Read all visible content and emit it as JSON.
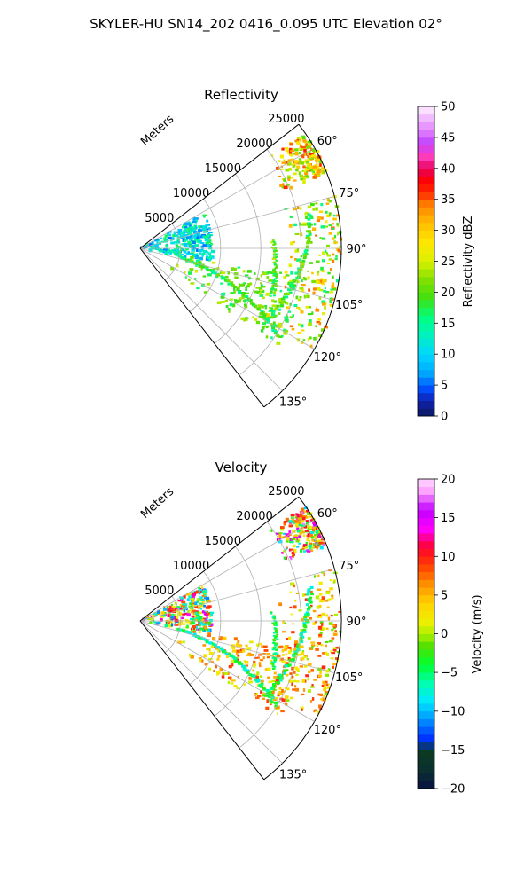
{
  "figure": {
    "suptitle": "SKYLER-HU  SN14_202  0416_0.095 UTC Elevation 02°"
  },
  "chart_data": [
    {
      "type": "heatmap",
      "projection": "polar-sector",
      "title": "Reflectivity",
      "radial_label": "Meters",
      "r_ticks": [
        "5000",
        "10000",
        "15000",
        "20000",
        "25000"
      ],
      "r_max": 25000,
      "theta_ticks": [
        "60°",
        "75°",
        "90°",
        "105°",
        "120°",
        "135°"
      ],
      "theta_range_deg": [
        52,
        142
      ],
      "grid": true,
      "colorbar": {
        "label": "Reflectivity dBZ",
        "min": 0,
        "max": 50,
        "ticks": [
          "0",
          "5",
          "10",
          "15",
          "20",
          "25",
          "30",
          "35",
          "40",
          "45",
          "50"
        ],
        "colormap": "pyart_NWSRef-like"
      },
      "features": [
        {
          "desc": "near-range clutter",
          "theta": [
            60,
            100
          ],
          "r": [
            0,
            9000
          ],
          "value": [
            5,
            18
          ]
        },
        {
          "desc": "north cell",
          "theta": [
            55,
            68
          ],
          "r": [
            19000,
            25000
          ],
          "value": [
            20,
            37
          ]
        },
        {
          "desc": "line east",
          "theta": [
            75,
            120
          ],
          "r": [
            17000,
            25000
          ],
          "value": [
            15,
            35
          ]
        },
        {
          "desc": "band southeast",
          "theta": [
            100,
            125
          ],
          "r": [
            4000,
            21000
          ],
          "value": [
            15,
            25
          ]
        }
      ]
    },
    {
      "type": "heatmap",
      "projection": "polar-sector",
      "title": "Velocity",
      "radial_label": "Meters",
      "r_ticks": [
        "5000",
        "10000",
        "15000",
        "20000",
        "25000"
      ],
      "r_max": 25000,
      "theta_ticks": [
        "60°",
        "75°",
        "90°",
        "105°",
        "120°",
        "135°"
      ],
      "theta_range_deg": [
        52,
        142
      ],
      "grid": true,
      "colorbar": {
        "label": "Velocity (m/s)",
        "min": -20,
        "max": 20,
        "ticks": [
          "−20",
          "−15",
          "−10",
          "−5",
          "0",
          "5",
          "10",
          "15",
          "20"
        ],
        "colormap": "pyart_BuDRd-like"
      },
      "features": [
        {
          "desc": "near-range",
          "theta": [
            60,
            100
          ],
          "r": [
            0,
            9000
          ],
          "value": [
            -12,
            15
          ]
        },
        {
          "desc": "north cell",
          "theta": [
            55,
            68
          ],
          "r": [
            19000,
            25000
          ],
          "value": [
            -10,
            18
          ]
        },
        {
          "desc": "line east",
          "theta": [
            75,
            120
          ],
          "r": [
            17000,
            25000
          ],
          "value": [
            -2,
            10
          ]
        },
        {
          "desc": "band southeast",
          "theta": [
            100,
            125
          ],
          "r": [
            4000,
            21000
          ],
          "value": [
            0,
            10
          ]
        }
      ]
    }
  ]
}
